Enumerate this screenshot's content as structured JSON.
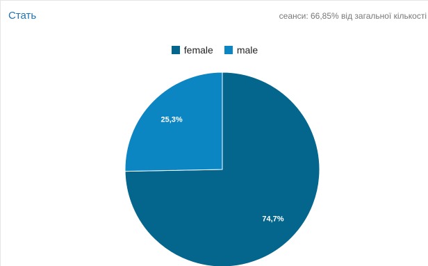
{
  "header": {
    "title": "Стать",
    "subtitle": "сеанси: 66,85% від загальної кількості"
  },
  "chart_data": {
    "type": "pie",
    "categories": [
      "female",
      "male"
    ],
    "values": [
      74.7,
      25.3
    ],
    "value_labels": [
      "74,7%",
      "25,3%"
    ],
    "colors": [
      "#05668d",
      "#0c86c3"
    ],
    "legend_position": "top-center",
    "start_angle_deg": 0,
    "direction": "clockwise"
  }
}
